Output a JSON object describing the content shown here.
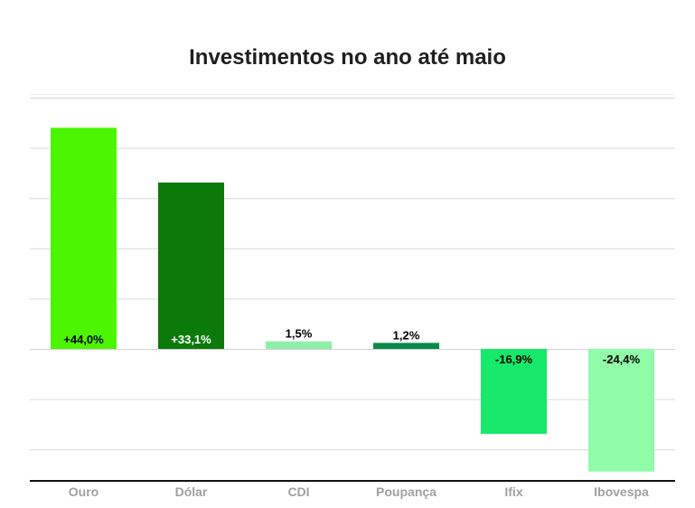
{
  "chart_data": {
    "type": "bar",
    "title": "Investimentos no ano até maio",
    "categories": [
      "Ouro",
      "Dólar",
      "CDI",
      "Poupança",
      "Ifix",
      "Ibovespa"
    ],
    "values": [
      44.0,
      33.1,
      1.5,
      1.2,
      -16.9,
      -24.4
    ],
    "labels": [
      "+44,0%",
      "+33,1%",
      "1,5%",
      "1,2%",
      "-16,9%",
      "-24,4%"
    ],
    "colors": [
      "#4cf500",
      "#0b7a0b",
      "#8ef0a8",
      "#0a8a48",
      "#17e86a",
      "#90fca8"
    ],
    "label_colors": [
      "#000000",
      "#ffffff",
      "#000000",
      "#000000",
      "#000000",
      "#000000"
    ],
    "ylim": [
      -25,
      50
    ],
    "grid": true,
    "xlabel": "",
    "ylabel": ""
  }
}
